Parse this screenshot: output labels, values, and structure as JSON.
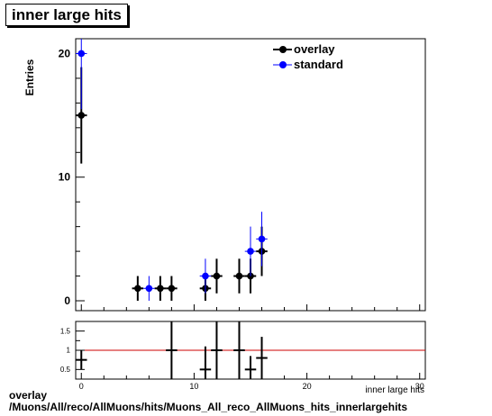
{
  "window_title": "inner large hits",
  "footer": {
    "line1": "overlay",
    "line2": "/Muons/All/reco/AllMuons/hits/Muons_All_reco_AllMuons_hits_innerlargehits"
  },
  "colors": {
    "overlay": "#000000",
    "standard": "#0000ff",
    "ratio_line": "#cc0000"
  },
  "chart_data": [
    {
      "type": "scatter",
      "title": "inner large hits",
      "xlabel": "inner large hits",
      "ylabel": "Entries",
      "xlim": [
        -0.5,
        30.5
      ],
      "ylim": [
        -0.8,
        21.2
      ],
      "yticks": [
        0,
        10,
        20
      ],
      "xticks": [
        0,
        10,
        20,
        30
      ],
      "legend_position": "top-right",
      "series": [
        {
          "name": "overlay",
          "marker": "black filled circle",
          "points": [
            {
              "x": 0,
              "y": 15,
              "err": 3.9
            },
            {
              "x": 5,
              "y": 1,
              "err": 1.0
            },
            {
              "x": 7,
              "y": 1,
              "err": 1.0
            },
            {
              "x": 8,
              "y": 1,
              "err": 1.0
            },
            {
              "x": 11,
              "y": 1,
              "err": 1.0
            },
            {
              "x": 12,
              "y": 2,
              "err": 1.4
            },
            {
              "x": 14,
              "y": 2,
              "err": 1.4
            },
            {
              "x": 15,
              "y": 2,
              "err": 1.4
            },
            {
              "x": 16,
              "y": 4,
              "err": 2.0
            }
          ]
        },
        {
          "name": "standard",
          "marker": "blue filled circle",
          "points": [
            {
              "x": 0,
              "y": 20,
              "err": 4.5
            },
            {
              "x": 6,
              "y": 1,
              "err": 1.0
            },
            {
              "x": 11,
              "y": 2,
              "err": 1.4
            },
            {
              "x": 15,
              "y": 4,
              "err": 2.0
            },
            {
              "x": 16,
              "y": 5,
              "err": 2.2
            }
          ]
        }
      ]
    },
    {
      "type": "scatter",
      "title": "",
      "xlabel": "",
      "ylabel": "",
      "xlim": [
        -0.5,
        30.5
      ],
      "ylim": [
        0.25,
        1.75
      ],
      "yticks": [
        0.5,
        1,
        1.5
      ],
      "ytick_labels": [
        "0.5",
        "1",
        "1.5"
      ],
      "xticks": [
        0,
        10,
        20,
        30
      ],
      "reference_line": 1,
      "series": [
        {
          "name": "ratio",
          "points": [
            {
              "x": 0,
              "y": 0.75,
              "err": 0.25
            },
            {
              "x": 8,
              "y": 1.0,
              "err": 0.75
            },
            {
              "x": 11,
              "y": 0.5,
              "err": 0.6
            },
            {
              "x": 12,
              "y": 1.0,
              "err": 0.8
            },
            {
              "x": 14,
              "y": 1.0,
              "err": 0.8
            },
            {
              "x": 15,
              "y": 0.5,
              "err": 0.35
            },
            {
              "x": 16,
              "y": 0.8,
              "err": 0.55
            }
          ]
        }
      ]
    }
  ]
}
